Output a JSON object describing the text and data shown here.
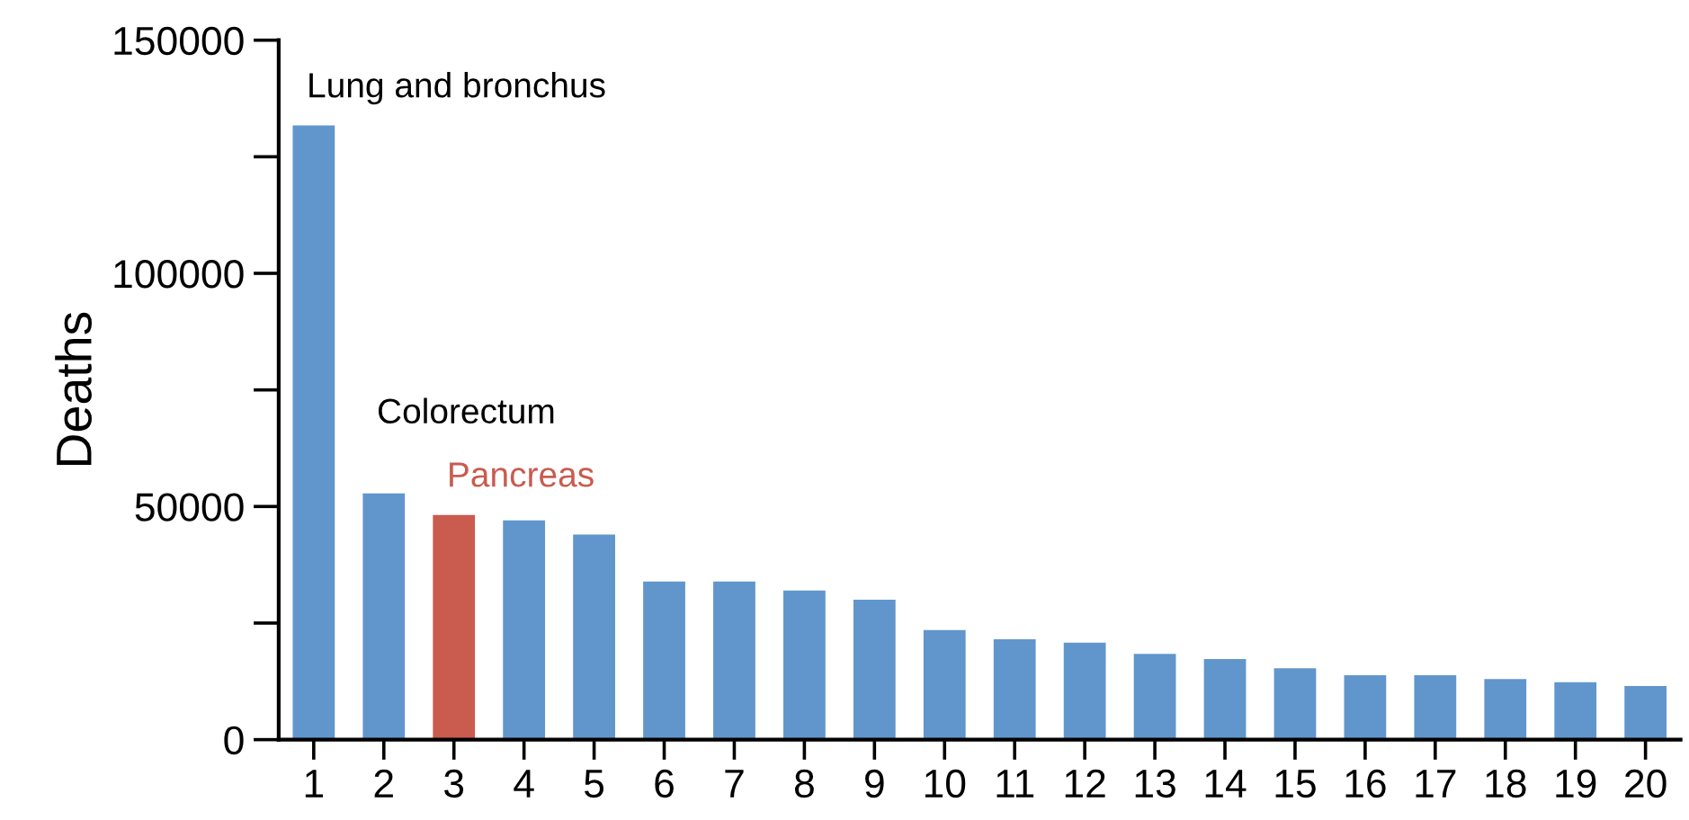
{
  "chart_data": {
    "type": "bar",
    "ylabel": "Deaths",
    "categories": [
      "1",
      "2",
      "3",
      "4",
      "5",
      "6",
      "7",
      "8",
      "9",
      "10",
      "11",
      "12",
      "13",
      "14",
      "15",
      "16",
      "17",
      "18",
      "19",
      "20"
    ],
    "values": [
      131700,
      52800,
      48200,
      47000,
      44000,
      33900,
      33900,
      32000,
      30000,
      23500,
      21500,
      20800,
      18400,
      17300,
      15300,
      13800,
      13800,
      13000,
      12300,
      11500
    ],
    "colors": [
      "#6096cc",
      "#6096cc",
      "#c95b4f",
      "#6096cc",
      "#6096cc",
      "#6096cc",
      "#6096cc",
      "#6096cc",
      "#6096cc",
      "#6096cc",
      "#6096cc",
      "#6096cc",
      "#6096cc",
      "#6096cc",
      "#6096cc",
      "#6096cc",
      "#6096cc",
      "#6096cc",
      "#6096cc",
      "#6096cc"
    ],
    "ylim": [
      0,
      150000
    ],
    "yticks": [
      0,
      {
        "value": 25000,
        "label": null
      },
      50000,
      {
        "value": 75000,
        "label": null
      },
      100000,
      {
        "value": 125000,
        "label": null
      },
      150000
    ],
    "annotations": [
      {
        "text": "Lung and bronchus",
        "x": "1",
        "y": 131700
      },
      {
        "text": "Colorectum",
        "x": "2",
        "y": 52800
      },
      {
        "text": "Pancreas",
        "x": "3",
        "y": 48200
      }
    ],
    "grid": false
  }
}
